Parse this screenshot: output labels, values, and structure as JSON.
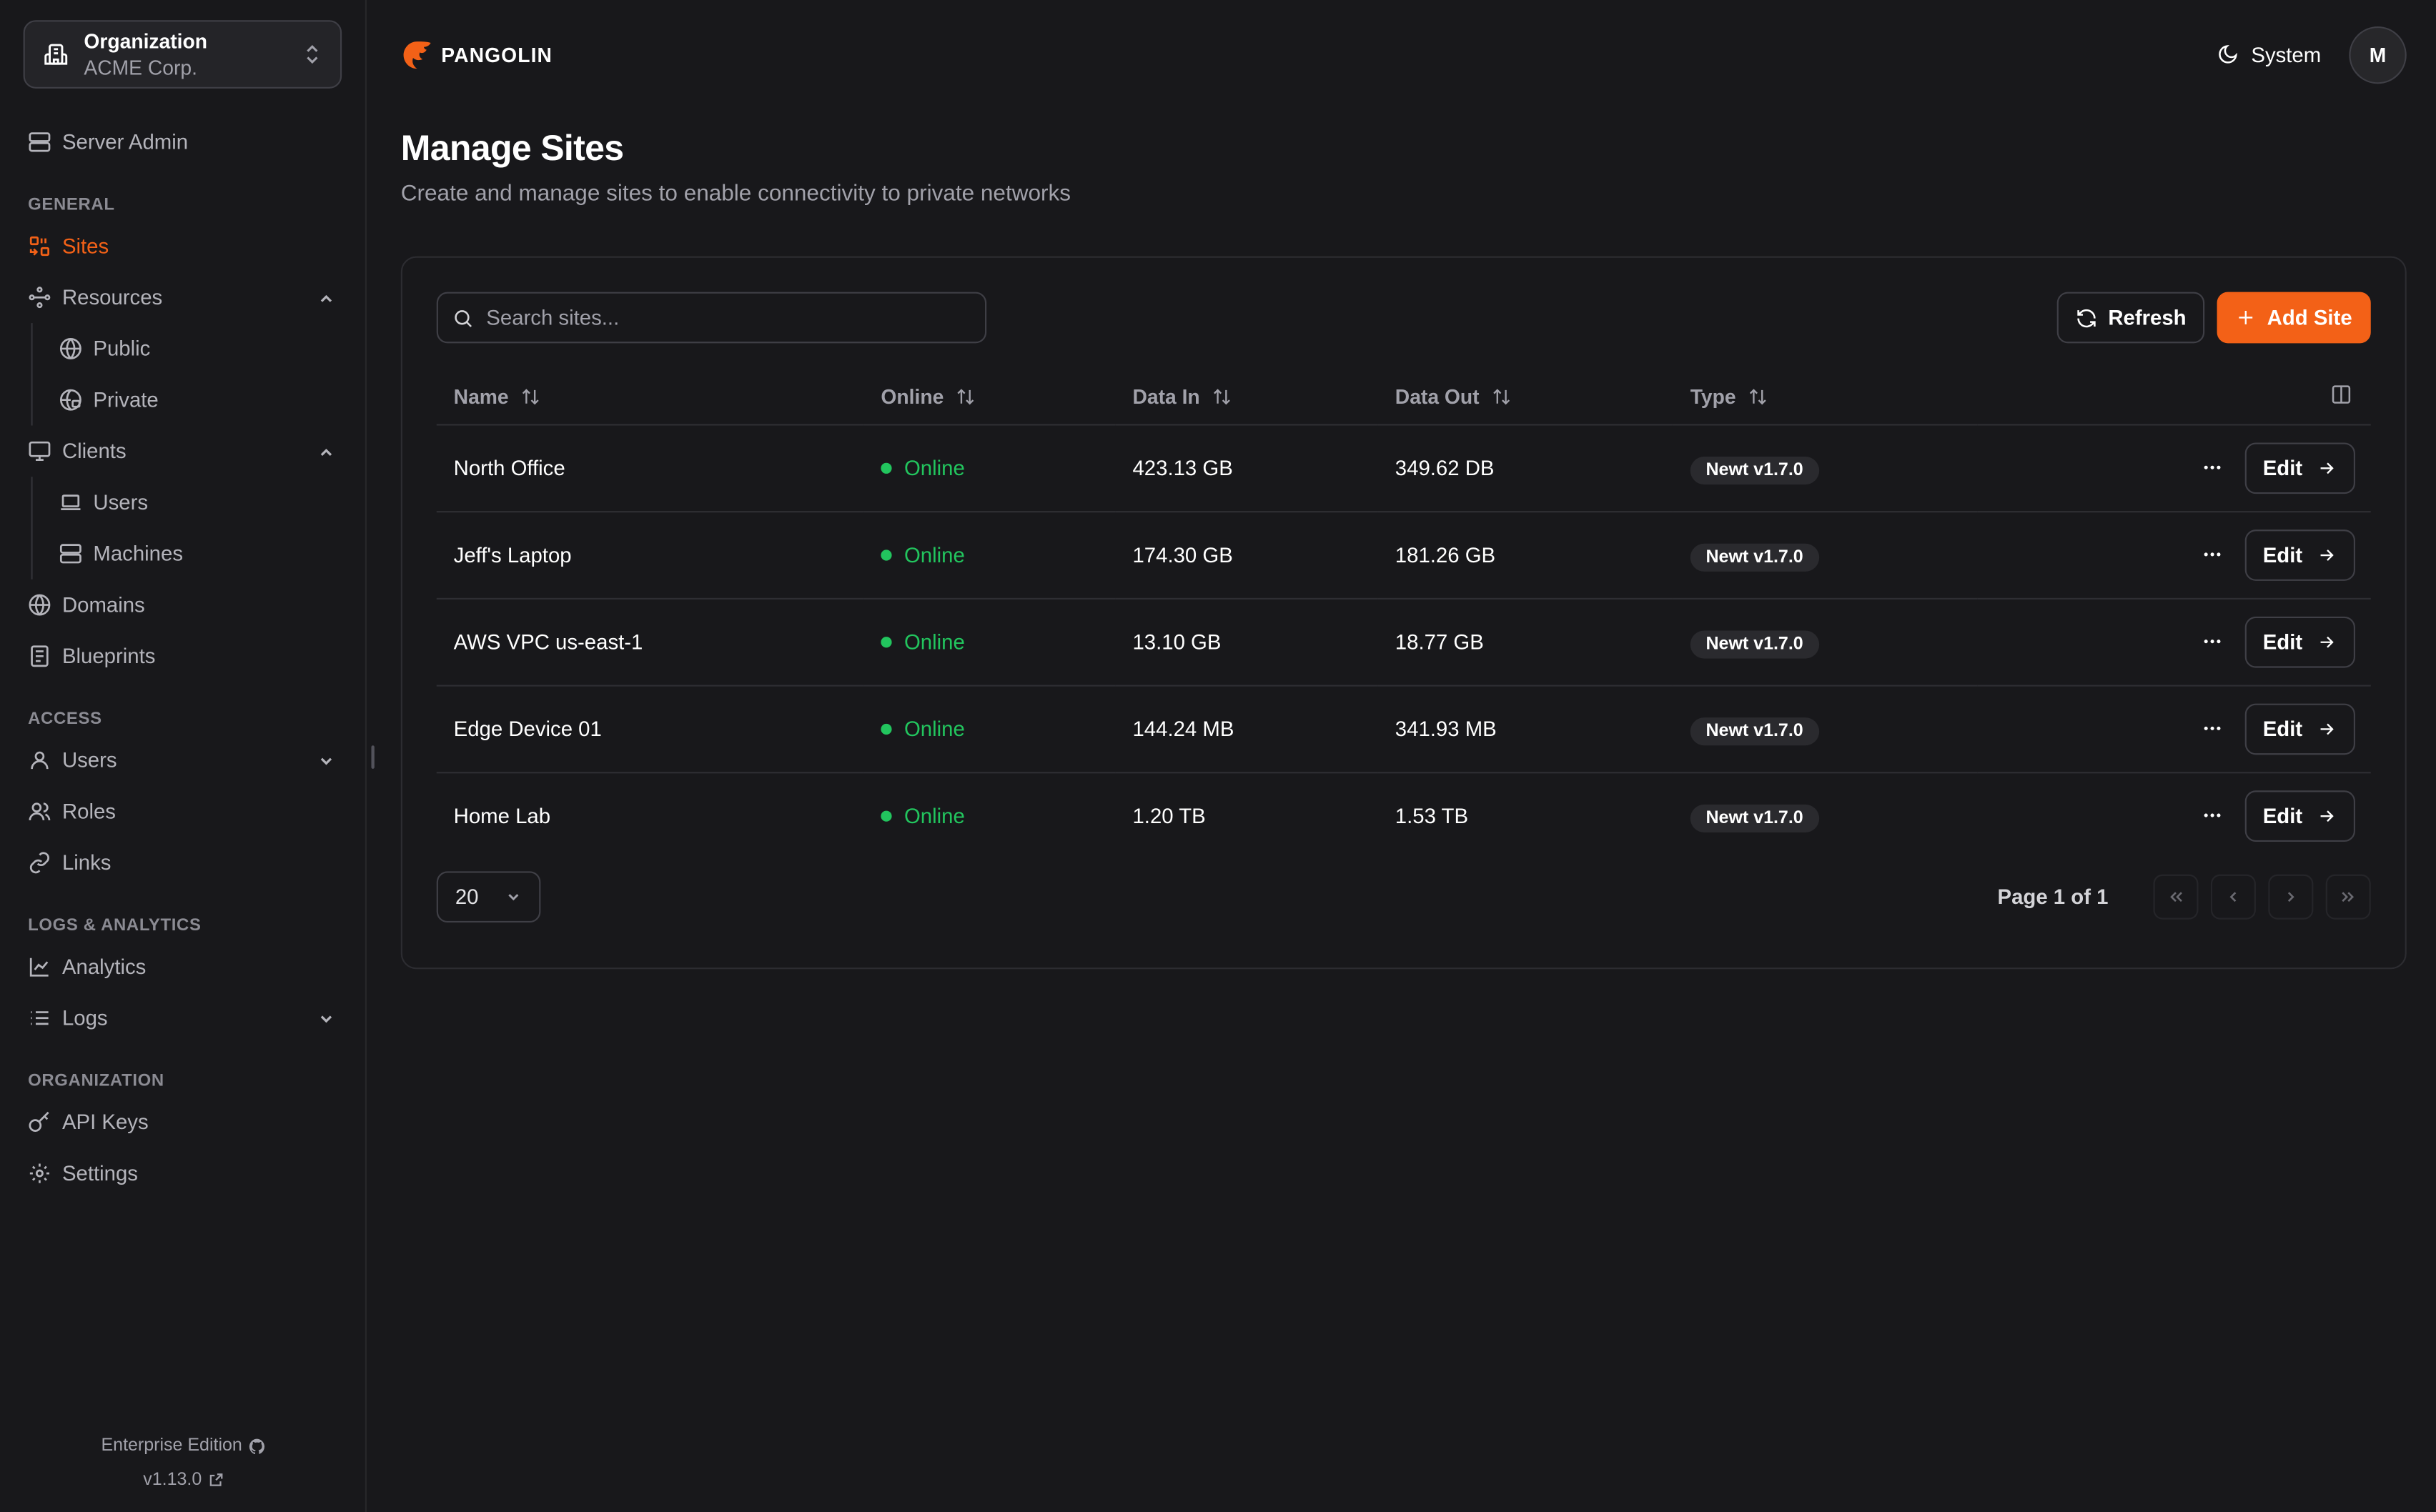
{
  "sidebar": {
    "org": {
      "label": "Organization",
      "name": "ACME Corp."
    },
    "server_admin": "Server Admin",
    "sections": {
      "general": "GENERAL",
      "access": "ACCESS",
      "logs": "LOGS & ANALYTICS",
      "organization": "ORGANIZATION"
    },
    "items": {
      "sites": "Sites",
      "resources": "Resources",
      "public": "Public",
      "private": "Private",
      "clients": "Clients",
      "users_client": "Users",
      "machines": "Machines",
      "domains": "Domains",
      "blueprints": "Blueprints",
      "users": "Users",
      "roles": "Roles",
      "links": "Links",
      "analytics": "Analytics",
      "logs": "Logs",
      "api_keys": "API Keys",
      "settings": "Settings"
    },
    "footer": {
      "edition": "Enterprise Edition",
      "version": "v1.13.0"
    }
  },
  "header": {
    "brand": "PANGOLIN",
    "theme": "System",
    "avatar": "M"
  },
  "page": {
    "title": "Manage Sites",
    "description": "Create and manage sites to enable connectivity to private networks"
  },
  "toolbar": {
    "search_placeholder": "Search sites...",
    "refresh": "Refresh",
    "add": "Add Site"
  },
  "table": {
    "columns": [
      "Name",
      "Online",
      "Data In",
      "Data Out",
      "Type"
    ],
    "rows": [
      {
        "name": "North Office",
        "online": "Online",
        "data_in": "423.13 GB",
        "data_out": "349.62 DB",
        "type": "Newt v1.7.0"
      },
      {
        "name": "Jeff's Laptop",
        "online": "Online",
        "data_in": "174.30 GB",
        "data_out": "181.26 GB",
        "type": "Newt v1.7.0"
      },
      {
        "name": "AWS VPC us-east-1",
        "online": "Online",
        "data_in": "13.10 GB",
        "data_out": "18.77 GB",
        "type": "Newt v1.7.0"
      },
      {
        "name": "Edge Device 01",
        "online": "Online",
        "data_in": "144.24 MB",
        "data_out": "341.93 MB",
        "type": "Newt v1.7.0"
      },
      {
        "name": "Home Lab",
        "online": "Online",
        "data_in": "1.20 TB",
        "data_out": "1.53 TB",
        "type": "Newt v1.7.0"
      }
    ],
    "edit_label": "Edit"
  },
  "pagination": {
    "page_size": "20",
    "page_text": "Page 1 of 1"
  },
  "colors": {
    "accent": "#f36117",
    "online": "#22c55e",
    "background": "#18181b"
  }
}
